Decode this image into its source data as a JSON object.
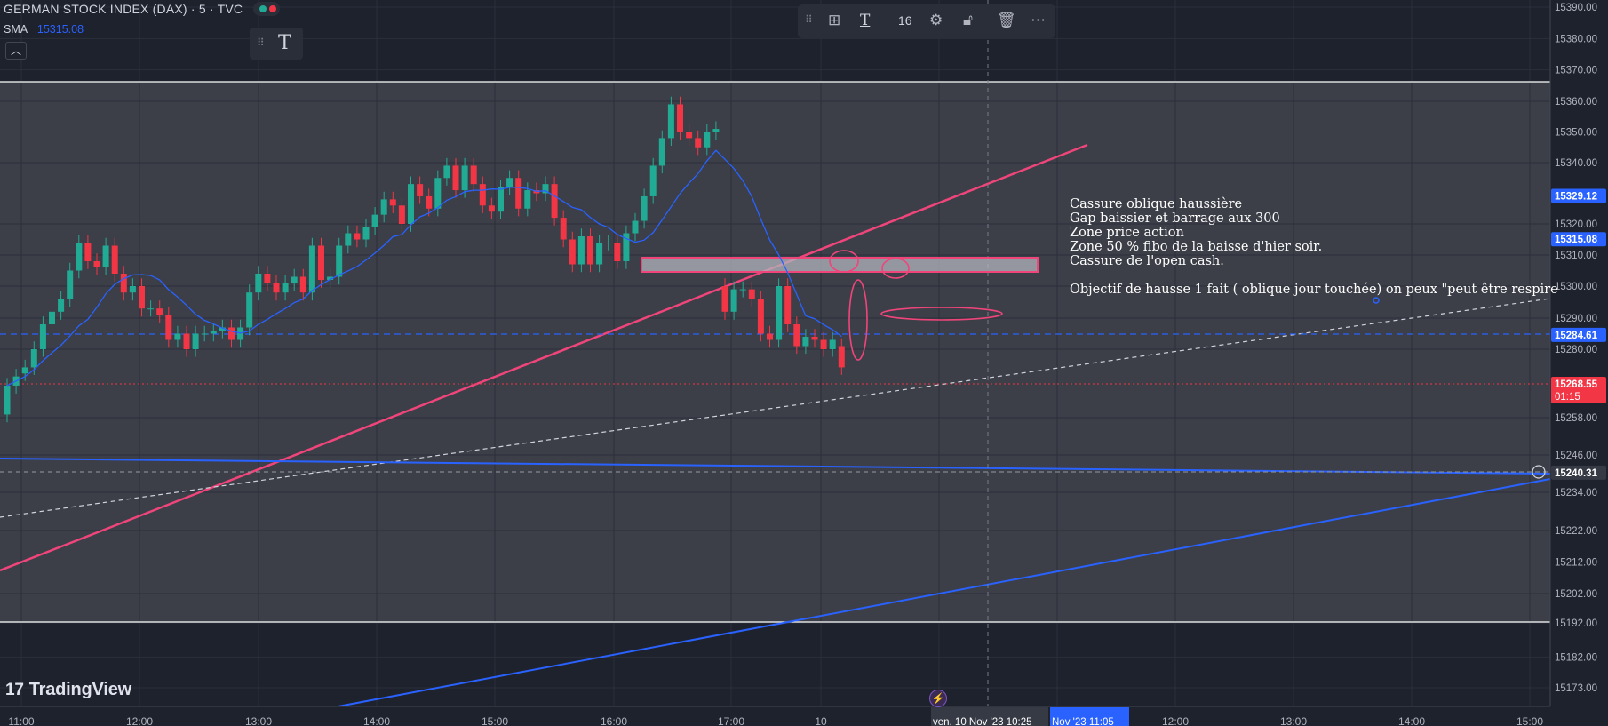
{
  "header": {
    "title": "GERMAN STOCK INDEX (DAX) · 5 · TVC",
    "indicator_name": "SMA",
    "indicator_value": "15315.08"
  },
  "toolbar": {
    "font_size": "16",
    "icons": [
      "drag-handle-icon",
      "template-icon",
      "text-color-icon",
      "settings-icon",
      "unlock-icon",
      "trash-icon",
      "more-icon"
    ]
  },
  "text_tool_icon": "T",
  "branding": "TradingView",
  "annotation": {
    "lines": [
      "Cassure oblique haussière",
      "Gap baissier et barrage aux 300",
      "Zone price action",
      "Zone 50 % fibo de la baisse d'hier soir.",
      "Cassure de l'open cash."
    ],
    "objective": "Objectif de hausse 1 fait ( oblique jour touchée) on peux \"peut être respire"
  },
  "price_axis": {
    "ticks": [
      "15390.00",
      "15380.00",
      "15370.00",
      "15360.00",
      "15350.00",
      "15340.00",
      "15320.00",
      "15310.00",
      "15300.00",
      "15290.00",
      "15280.00",
      "15258.00",
      "15246.00",
      "15234.00",
      "15222.00",
      "15212.00",
      "15202.00",
      "15192.00",
      "15182.00",
      "15173.00"
    ],
    "badges": [
      {
        "label": "15329.12",
        "price": 15329.12,
        "color": "#2962ff"
      },
      {
        "label": "15315.08",
        "price": 15315.08,
        "color": "#2962ff"
      },
      {
        "label": "15284.61",
        "price": 15284.61,
        "color": "#2962ff"
      },
      {
        "label": "15268.55",
        "price": 15268.55,
        "color": "#f23645",
        "sub": "01:15"
      },
      {
        "label": "15240.31",
        "price": 15240.31,
        "color": "#363a45"
      }
    ]
  },
  "time_axis": {
    "ticks": [
      "11:00",
      "12:00",
      "13:00",
      "14:00",
      "15:00",
      "16:00",
      "17:00",
      "10",
      "12:00",
      "13:00",
      "14:00",
      "15:00"
    ],
    "crosshair_label": "ven. 10 Nov '23   10:25",
    "range_label": "Nov '23   11:05"
  },
  "colors": {
    "bg": "#1e222d",
    "up": "#22ab94",
    "down": "#f23645",
    "sma": "#2962ff",
    "pink": "#f0457a"
  },
  "chart_data": {
    "type": "candlestick",
    "title": "GERMAN STOCK INDEX (DAX) · 5 · TVC",
    "x_unit": "5-minute bars",
    "ylim": [
      15167,
      15393
    ],
    "open": [
      15259,
      15268,
      15272,
      15274,
      15280,
      15288,
      15292,
      15296,
      15305,
      15314,
      15308,
      15306,
      15313,
      15304,
      15298,
      15300,
      15293,
      15293,
      15291,
      15283,
      15285,
      15280,
      15285,
      15285,
      15286,
      15287,
      15283,
      15287,
      15298,
      15304,
      15301,
      15298,
      15301,
      15303,
      15298,
      15313,
      15302,
      15303,
      15313,
      15317,
      15315,
      15319,
      15323,
      15328,
      15326,
      15320,
      15333,
      15329,
      15325,
      15335,
      15339,
      15331,
      15339,
      15333,
      15326,
      15324,
      15332,
      15335,
      15325,
      15331,
      15330,
      15333,
      15322,
      15315,
      15307,
      15316,
      15307,
      15314,
      15314,
      15308,
      15317,
      15321,
      15329,
      15339,
      15348,
      15359,
      15350,
      15348,
      15345,
      15350,
      15300,
      15292,
      15299,
      15299,
      15296,
      15285,
      15283,
      15300,
      15288,
      15281,
      15284,
      15283,
      15280,
      15281
    ],
    "close": [
      15268,
      15271,
      15274,
      15280,
      15288,
      15292,
      15296,
      15305,
      15314,
      15308,
      15306,
      15313,
      15304,
      15298,
      15300,
      15293,
      15293,
      15291,
      15283,
      15285,
      15280,
      15285,
      15285,
      15286,
      15287,
      15283,
      15287,
      15298,
      15304,
      15301,
      15298,
      15301,
      15303,
      15298,
      15313,
      15302,
      15303,
      15313,
      15317,
      15315,
      15319,
      15323,
      15328,
      15326,
      15320,
      15333,
      15329,
      15325,
      15335,
      15339,
      15331,
      15339,
      15333,
      15326,
      15324,
      15332,
      15335,
      15325,
      15331,
      15330,
      15333,
      15322,
      15315,
      15307,
      15316,
      15307,
      15314,
      15314,
      15308,
      15317,
      15321,
      15329,
      15339,
      15348,
      15359,
      15350,
      15348,
      15345,
      15350,
      15351,
      15292,
      15299,
      15299,
      15296,
      15285,
      15283,
      15300,
      15288,
      15281,
      15284,
      15283,
      15280,
      15283,
      15274
    ],
    "x_labels": [
      "11:00",
      "12:00",
      "13:00",
      "14:00",
      "15:00",
      "16:00",
      "17:00",
      "10"
    ],
    "sma_value_last": 15315.08,
    "levels": [
      15370.0,
      15192.0,
      15284.61,
      15268.55,
      15240.31
    ],
    "zone": [
      15304,
      15309
    ]
  }
}
